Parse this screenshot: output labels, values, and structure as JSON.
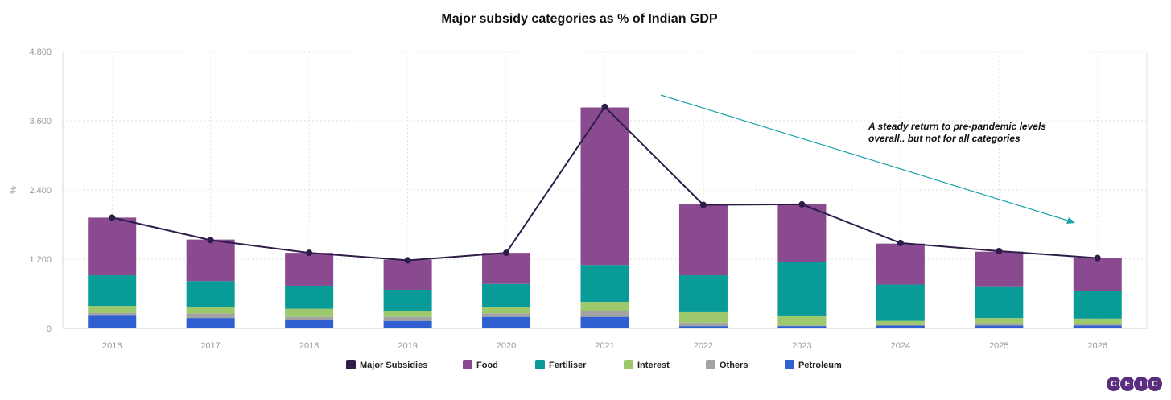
{
  "chart_data": {
    "type": "bar",
    "title": "Major subsidy categories as % of Indian GDP",
    "ylabel": "%",
    "xlabel": "",
    "ylim": [
      0,
      4.8
    ],
    "yticks": [
      "0",
      "1.200",
      "2.400",
      "3.600",
      "4.800"
    ],
    "ytick_values": [
      0,
      1.2,
      2.4,
      3.6,
      4.8
    ],
    "categories": [
      "2016",
      "2017",
      "2018",
      "2019",
      "2020",
      "2021",
      "2022",
      "2023",
      "2024",
      "2025",
      "2026"
    ],
    "stacked": true,
    "series": [
      {
        "name": "Petroleum",
        "kind": "bar",
        "color": "#2f5fd0",
        "values": [
          0.22,
          0.18,
          0.14,
          0.13,
          0.2,
          0.2,
          0.04,
          0.04,
          0.05,
          0.05,
          0.05
        ]
      },
      {
        "name": "Others",
        "kind": "bar",
        "color": "#a3a3a3",
        "values": [
          0.05,
          0.08,
          0.06,
          0.07,
          0.06,
          0.1,
          0.06,
          0.01,
          0.01,
          0.04,
          0.03
        ]
      },
      {
        "name": "Interest",
        "kind": "bar",
        "color": "#9dc86b",
        "values": [
          0.12,
          0.11,
          0.14,
          0.1,
          0.11,
          0.16,
          0.18,
          0.16,
          0.07,
          0.09,
          0.09
        ]
      },
      {
        "name": "Fertiliser",
        "kind": "bar",
        "color": "#089b97",
        "values": [
          0.53,
          0.45,
          0.4,
          0.37,
          0.4,
          0.64,
          0.64,
          0.94,
          0.63,
          0.55,
          0.48
        ]
      },
      {
        "name": "Food",
        "kind": "bar",
        "color": "#8a4a8f",
        "values": [
          1.0,
          0.72,
          0.57,
          0.52,
          0.54,
          2.73,
          1.24,
          1.0,
          0.71,
          0.6,
          0.57
        ]
      },
      {
        "name": "Major Subsidies",
        "kind": "line",
        "color": "#2e1d4a",
        "values": [
          1.92,
          1.53,
          1.31,
          1.18,
          1.31,
          3.84,
          2.14,
          2.15,
          1.48,
          1.34,
          1.22
        ]
      }
    ],
    "legend": {
      "placement": "bottom-center",
      "order": [
        "Major Subsidies",
        "Food",
        "Fertiliser",
        "Interest",
        "Others",
        "Petroleum"
      ]
    },
    "annotation": {
      "line1": "A steady return to pre-pandemic levels",
      "line2": "overall.. but not for all categories",
      "arrow_color": "#1aa3a8"
    },
    "grid": true
  },
  "logo": {
    "letters": [
      "C",
      "E",
      "I",
      "C"
    ],
    "color": "#5b2d7e"
  }
}
